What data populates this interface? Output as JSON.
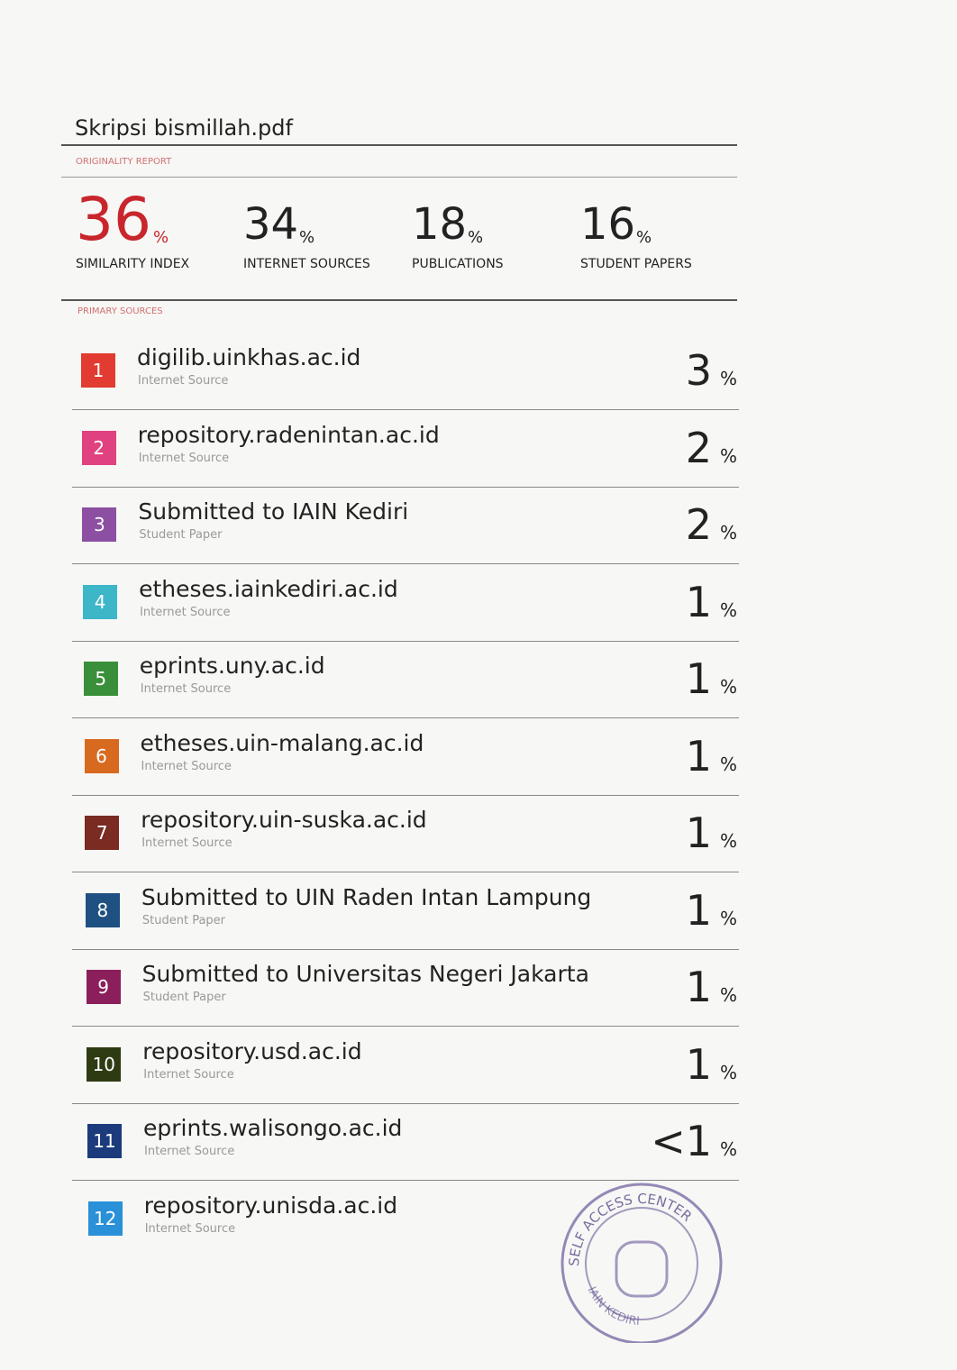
{
  "header": {
    "title": "Skripsi bismillah.pdf",
    "report_label": "ORIGINALITY REPORT"
  },
  "summary": [
    {
      "value": "36",
      "unit": "%",
      "label": "SIMILARITY INDEX",
      "color": "#c8262c"
    },
    {
      "value": "34",
      "unit": "%",
      "label": "INTERNET SOURCES",
      "color": "#222222"
    },
    {
      "value": "18",
      "unit": "%",
      "label": "PUBLICATIONS",
      "color": "#222222"
    },
    {
      "value": "16",
      "unit": "%",
      "label": "STUDENT PAPERS",
      "color": "#222222"
    }
  ],
  "sources_label": "PRIMARY SOURCES",
  "sources": [
    {
      "number": "1",
      "name": "digilib.uinkhas.ac.id",
      "type": "Internet Source",
      "percent": "3",
      "unit": "%",
      "color": "#e23b31"
    },
    {
      "number": "2",
      "name": "repository.radenintan.ac.id",
      "type": "Internet Source",
      "percent": "2",
      "unit": "%",
      "color": "#e0427f"
    },
    {
      "number": "3",
      "name": "Submitted to IAIN Kediri",
      "type": "Student Paper",
      "percent": "2",
      "unit": "%",
      "color": "#8c4fa2"
    },
    {
      "number": "4",
      "name": "etheses.iainkediri.ac.id",
      "type": "Internet Source",
      "percent": "1",
      "unit": "%",
      "color": "#3db6c8"
    },
    {
      "number": "5",
      "name": "eprints.uny.ac.id",
      "type": "Internet Source",
      "percent": "1",
      "unit": "%",
      "color": "#3a903a"
    },
    {
      "number": "6",
      "name": "etheses.uin-malang.ac.id",
      "type": "Internet Source",
      "percent": "1",
      "unit": "%",
      "color": "#d86a20"
    },
    {
      "number": "7",
      "name": "repository.uin-suska.ac.id",
      "type": "Internet Source",
      "percent": "1",
      "unit": "%",
      "color": "#7a2b22"
    },
    {
      "number": "8",
      "name": "Submitted to UIN Raden Intan Lampung",
      "type": "Student Paper",
      "percent": "1",
      "unit": "%",
      "color": "#1f5082"
    },
    {
      "number": "9",
      "name": "Submitted to Universitas Negeri Jakarta",
      "type": "Student Paper",
      "percent": "1",
      "unit": "%",
      "color": "#8b1f5b"
    },
    {
      "number": "10",
      "name": "repository.usd.ac.id",
      "type": "Internet Source",
      "percent": "1",
      "unit": "%",
      "color": "#2e3b12"
    },
    {
      "number": "11",
      "name": "eprints.walisongo.ac.id",
      "type": "Internet Source",
      "percent": "<1",
      "unit": "%",
      "color": "#1c3b7c"
    },
    {
      "number": "12",
      "name": "repository.unisda.ac.id",
      "type": "Internet Source",
      "percent": "",
      "unit": "",
      "color": "#2a90d8"
    }
  ],
  "stamp": {
    "top": "SELF ACCESS CENTER",
    "bottom": "IAIN KEDIRI"
  }
}
